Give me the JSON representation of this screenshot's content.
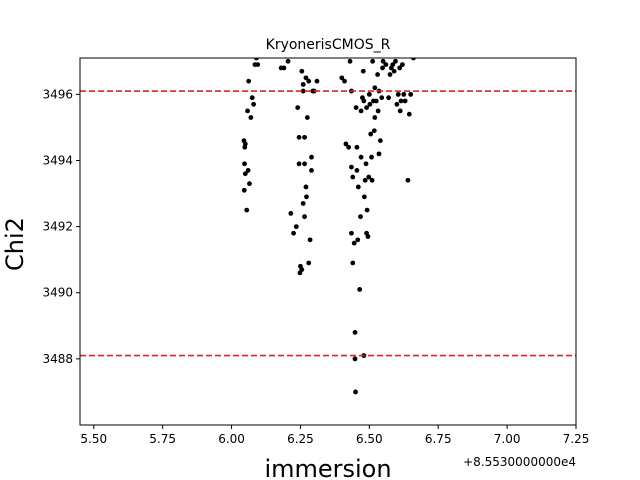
{
  "chart_data": {
    "type": "scatter",
    "title": "KryonerisCMOS_R",
    "xlabel": "immersion",
    "ylabel": "Chi2",
    "x_offset_label": "+8.5530000000e4",
    "xlim": [
      5.45,
      7.25
    ],
    "ylim": [
      3486.0,
      3497.1
    ],
    "xticks": [
      5.5,
      5.75,
      6.0,
      6.25,
      6.5,
      6.75,
      7.0,
      7.25
    ],
    "xtick_labels": [
      "5.50",
      "5.75",
      "6.00",
      "6.25",
      "6.50",
      "6.75",
      "7.00",
      "7.25"
    ],
    "yticks": [
      3488,
      3490,
      3492,
      3494,
      3496
    ],
    "ytick_labels": [
      "3488",
      "3490",
      "3492",
      "3494",
      "3496"
    ],
    "hlines": [
      {
        "y": 3496.1,
        "color": "#d62728",
        "style": "dashed"
      },
      {
        "y": 3488.1,
        "color": "#d62728",
        "style": "dashed"
      }
    ],
    "marker_color": "#000000",
    "grid": false,
    "points": [
      [
        6.045,
        3494.6
      ],
      [
        6.048,
        3494.4
      ],
      [
        6.05,
        3494.5
      ],
      [
        6.047,
        3493.9
      ],
      [
        6.05,
        3493.6
      ],
      [
        6.046,
        3493.1
      ],
      [
        6.06,
        3493.7
      ],
      [
        6.065,
        3493.3
      ],
      [
        6.055,
        3492.5
      ],
      [
        6.058,
        3495.5
      ],
      [
        6.07,
        3495.3
      ],
      [
        6.075,
        3495.9
      ],
      [
        6.08,
        3495.7
      ],
      [
        6.062,
        3496.4
      ],
      [
        6.085,
        3496.9
      ],
      [
        6.095,
        3496.9
      ],
      [
        6.09,
        3497.1
      ],
      [
        6.18,
        3496.8
      ],
      [
        6.19,
        3496.8
      ],
      [
        6.205,
        3497.0
      ],
      [
        6.215,
        3492.4
      ],
      [
        6.225,
        3491.8
      ],
      [
        6.235,
        3492.0
      ],
      [
        6.24,
        3495.6
      ],
      [
        6.245,
        3494.7
      ],
      [
        6.245,
        3493.9
      ],
      [
        6.25,
        3490.8
      ],
      [
        6.248,
        3490.6
      ],
      [
        6.255,
        3490.7
      ],
      [
        6.255,
        3496.7
      ],
      [
        6.26,
        3496.3
      ],
      [
        6.26,
        3496.1
      ],
      [
        6.265,
        3494.7
      ],
      [
        6.265,
        3493.9
      ],
      [
        6.27,
        3493.2
      ],
      [
        6.272,
        3492.9
      ],
      [
        6.26,
        3492.7
      ],
      [
        6.265,
        3492.3
      ],
      [
        6.275,
        3495.3
      ],
      [
        6.27,
        3496.5
      ],
      [
        6.28,
        3496.4
      ],
      [
        6.28,
        3490.9
      ],
      [
        6.285,
        3491.6
      ],
      [
        6.29,
        3494.1
      ],
      [
        6.29,
        3493.7
      ],
      [
        6.295,
        3496.1
      ],
      [
        6.3,
        3496.1
      ],
      [
        6.31,
        3496.4
      ],
      [
        6.4,
        3496.5
      ],
      [
        6.41,
        3496.4
      ],
      [
        6.415,
        3494.5
      ],
      [
        6.425,
        3494.4
      ],
      [
        6.43,
        3497.0
      ],
      [
        6.435,
        3496.1
      ],
      [
        6.435,
        3493.8
      ],
      [
        6.44,
        3493.5
      ],
      [
        6.435,
        3491.8
      ],
      [
        6.44,
        3490.9
      ],
      [
        6.445,
        3491.5
      ],
      [
        6.448,
        3488.8
      ],
      [
        6.448,
        3488.0
      ],
      [
        6.45,
        3487.0
      ],
      [
        6.452,
        3495.6
      ],
      [
        6.455,
        3494.4
      ],
      [
        6.455,
        3493.7
      ],
      [
        6.458,
        3491.6
      ],
      [
        6.46,
        3493.2
      ],
      [
        6.465,
        3490.1
      ],
      [
        6.468,
        3492.3
      ],
      [
        6.47,
        3494.1
      ],
      [
        6.47,
        3495.5
      ],
      [
        6.475,
        3495.9
      ],
      [
        6.478,
        3496.7
      ],
      [
        6.48,
        3495.8
      ],
      [
        6.482,
        3492.9
      ],
      [
        6.48,
        3488.1
      ],
      [
        6.485,
        3493.4
      ],
      [
        6.488,
        3493.9
      ],
      [
        6.49,
        3491.8
      ],
      [
        6.49,
        3495.6
      ],
      [
        6.492,
        3492.5
      ],
      [
        6.495,
        3491.7
      ],
      [
        6.498,
        3493.5
      ],
      [
        6.5,
        3496.0
      ],
      [
        6.502,
        3495.7
      ],
      [
        6.505,
        3494.8
      ],
      [
        6.508,
        3494.1
      ],
      [
        6.51,
        3493.4
      ],
      [
        6.512,
        3497.0
      ],
      [
        6.515,
        3495.8
      ],
      [
        6.518,
        3494.9
      ],
      [
        6.52,
        3495.3
      ],
      [
        6.52,
        3496.2
      ],
      [
        6.525,
        3495.8
      ],
      [
        6.53,
        3496.6
      ],
      [
        6.532,
        3495.5
      ],
      [
        6.535,
        3496.1
      ],
      [
        6.535,
        3494.2
      ],
      [
        6.54,
        3494.6
      ],
      [
        6.545,
        3495.9
      ],
      [
        6.548,
        3496.8
      ],
      [
        6.55,
        3497.0
      ],
      [
        6.56,
        3496.9
      ],
      [
        6.57,
        3495.9
      ],
      [
        6.575,
        3496.6
      ],
      [
        6.58,
        3496.8
      ],
      [
        6.585,
        3496.9
      ],
      [
        6.59,
        3496.7
      ],
      [
        6.595,
        3497.0
      ],
      [
        6.6,
        3495.7
      ],
      [
        6.605,
        3496.0
      ],
      [
        6.61,
        3496.8
      ],
      [
        6.612,
        3495.5
      ],
      [
        6.615,
        3495.8
      ],
      [
        6.62,
        3496.9
      ],
      [
        6.625,
        3496.0
      ],
      [
        6.63,
        3495.8
      ],
      [
        6.64,
        3493.4
      ],
      [
        6.645,
        3495.4
      ],
      [
        6.65,
        3496.0
      ],
      [
        6.66,
        3497.1
      ]
    ]
  }
}
